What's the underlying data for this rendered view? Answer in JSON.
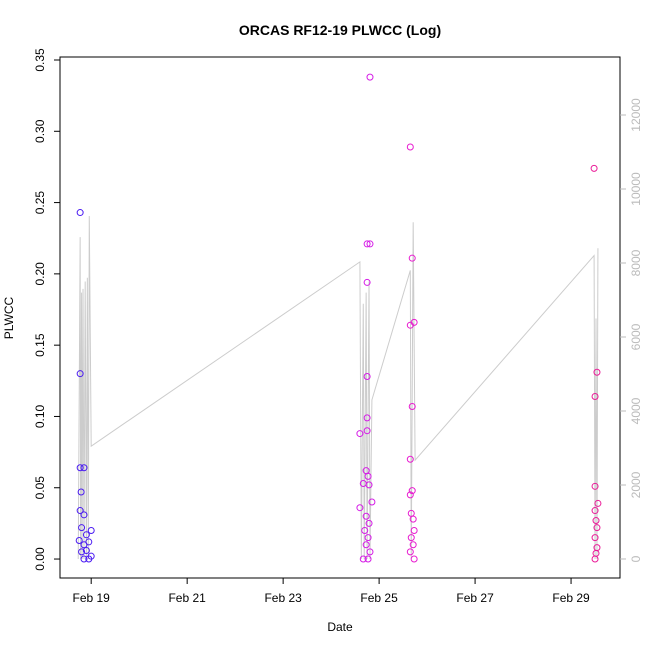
{
  "chart_data": {
    "type": "scatter",
    "title": "ORCAS RF12-19 PLWCC (Log)",
    "xlabel": "Date",
    "ylabel": "PLWCC",
    "xlim": [
      18.35,
      30.02
    ],
    "ylim": [
      -0.0133,
      0.3521
    ],
    "y2lim": [
      -514,
      13568
    ],
    "xticks": [
      {
        "value": 19,
        "label": "Feb 19"
      },
      {
        "value": 21,
        "label": "Feb 21"
      },
      {
        "value": 23,
        "label": "Feb 23"
      },
      {
        "value": 25,
        "label": "Feb 25"
      },
      {
        "value": 27,
        "label": "Feb 27"
      },
      {
        "value": 29,
        "label": "Feb 29"
      }
    ],
    "yticks": [
      {
        "value": 0,
        "label": "0.00"
      },
      {
        "value": 0.05,
        "label": "0.05"
      },
      {
        "value": 0.1,
        "label": "0.10"
      },
      {
        "value": 0.15,
        "label": "0.15"
      },
      {
        "value": 0.2,
        "label": "0.20"
      },
      {
        "value": 0.25,
        "label": "0.25"
      },
      {
        "value": 0.3,
        "label": "0.30"
      },
      {
        "value": 0.35,
        "label": "0.35"
      }
    ],
    "y2ticks": [
      0,
      2000,
      4000,
      6000,
      8000,
      10000,
      12000
    ],
    "series": [
      {
        "type": "line",
        "axis": "y2",
        "color": "#cccccc",
        "x": [
          18.73,
          18.77,
          18.78,
          18.8,
          18.81,
          18.83,
          18.85,
          18.875,
          18.9,
          18.92,
          18.94,
          18.96,
          19.0,
          24.6,
          24.63,
          24.67,
          24.69,
          24.73,
          24.75,
          24.79,
          24.81,
          24.85,
          25.65,
          25.67,
          25.71,
          25.75,
          29.48,
          29.5,
          29.52,
          29.54,
          29.56
        ],
        "values": [
          0,
          8700,
          0,
          7200,
          0,
          7300,
          0,
          7500,
          0,
          7600,
          0,
          9270,
          3050,
          8030,
          0,
          6900,
          0,
          7200,
          0,
          7500,
          0,
          4300,
          7800,
          0,
          9100,
          2670,
          8200,
          0,
          6500,
          0,
          8400
        ]
      },
      {
        "type": "points",
        "color": "#4b1cf2",
        "x": [
          18.77,
          18.77,
          18.77,
          18.85,
          18.79,
          18.77,
          18.85,
          19.0,
          18.9,
          18.8,
          18.95,
          18.75,
          18.85,
          18.9,
          18.8,
          19.0,
          18.95,
          18.85
        ],
        "values": [
          0.243,
          0.13,
          0.064,
          0.064,
          0.047,
          0.034,
          0.031,
          0.02,
          0.017,
          0.022,
          0.012,
          0.013,
          0.01,
          0.006,
          0.005,
          0.002,
          0.0,
          0.0
        ]
      },
      {
        "type": "points",
        "color": "#d51ce6",
        "x": [
          24.81,
          24.75,
          24.81,
          24.75,
          24.75,
          24.75,
          24.75,
          24.6,
          24.73,
          24.77,
          24.67,
          24.79,
          24.85,
          24.6,
          24.73,
          24.79,
          24.7,
          24.77,
          24.73,
          24.81,
          24.67,
          24.77
        ],
        "values": [
          0.338,
          0.221,
          0.221,
          0.194,
          0.128,
          0.099,
          0.09,
          0.088,
          0.062,
          0.058,
          0.053,
          0.052,
          0.04,
          0.036,
          0.03,
          0.025,
          0.02,
          0.015,
          0.01,
          0.005,
          0.0,
          0.0
        ]
      },
      {
        "type": "points",
        "color": "#e81cd0",
        "x": [
          25.65,
          25.69,
          25.73,
          25.65,
          25.69,
          25.65,
          25.69,
          25.65,
          25.67,
          25.71,
          25.73,
          25.67,
          25.71,
          25.65,
          25.73
        ],
        "values": [
          0.289,
          0.211,
          0.166,
          0.164,
          0.107,
          0.07,
          0.048,
          0.045,
          0.032,
          0.028,
          0.02,
          0.015,
          0.01,
          0.005,
          0.0
        ]
      },
      {
        "type": "points",
        "color": "#ea1c98",
        "x": [
          29.48,
          29.54,
          29.5,
          29.5,
          29.56,
          29.5,
          29.52,
          29.54,
          29.5,
          29.54,
          29.52,
          29.5
        ],
        "values": [
          0.274,
          0.131,
          0.114,
          0.051,
          0.039,
          0.034,
          0.027,
          0.022,
          0.015,
          0.008,
          0.004,
          0.0
        ]
      }
    ]
  }
}
